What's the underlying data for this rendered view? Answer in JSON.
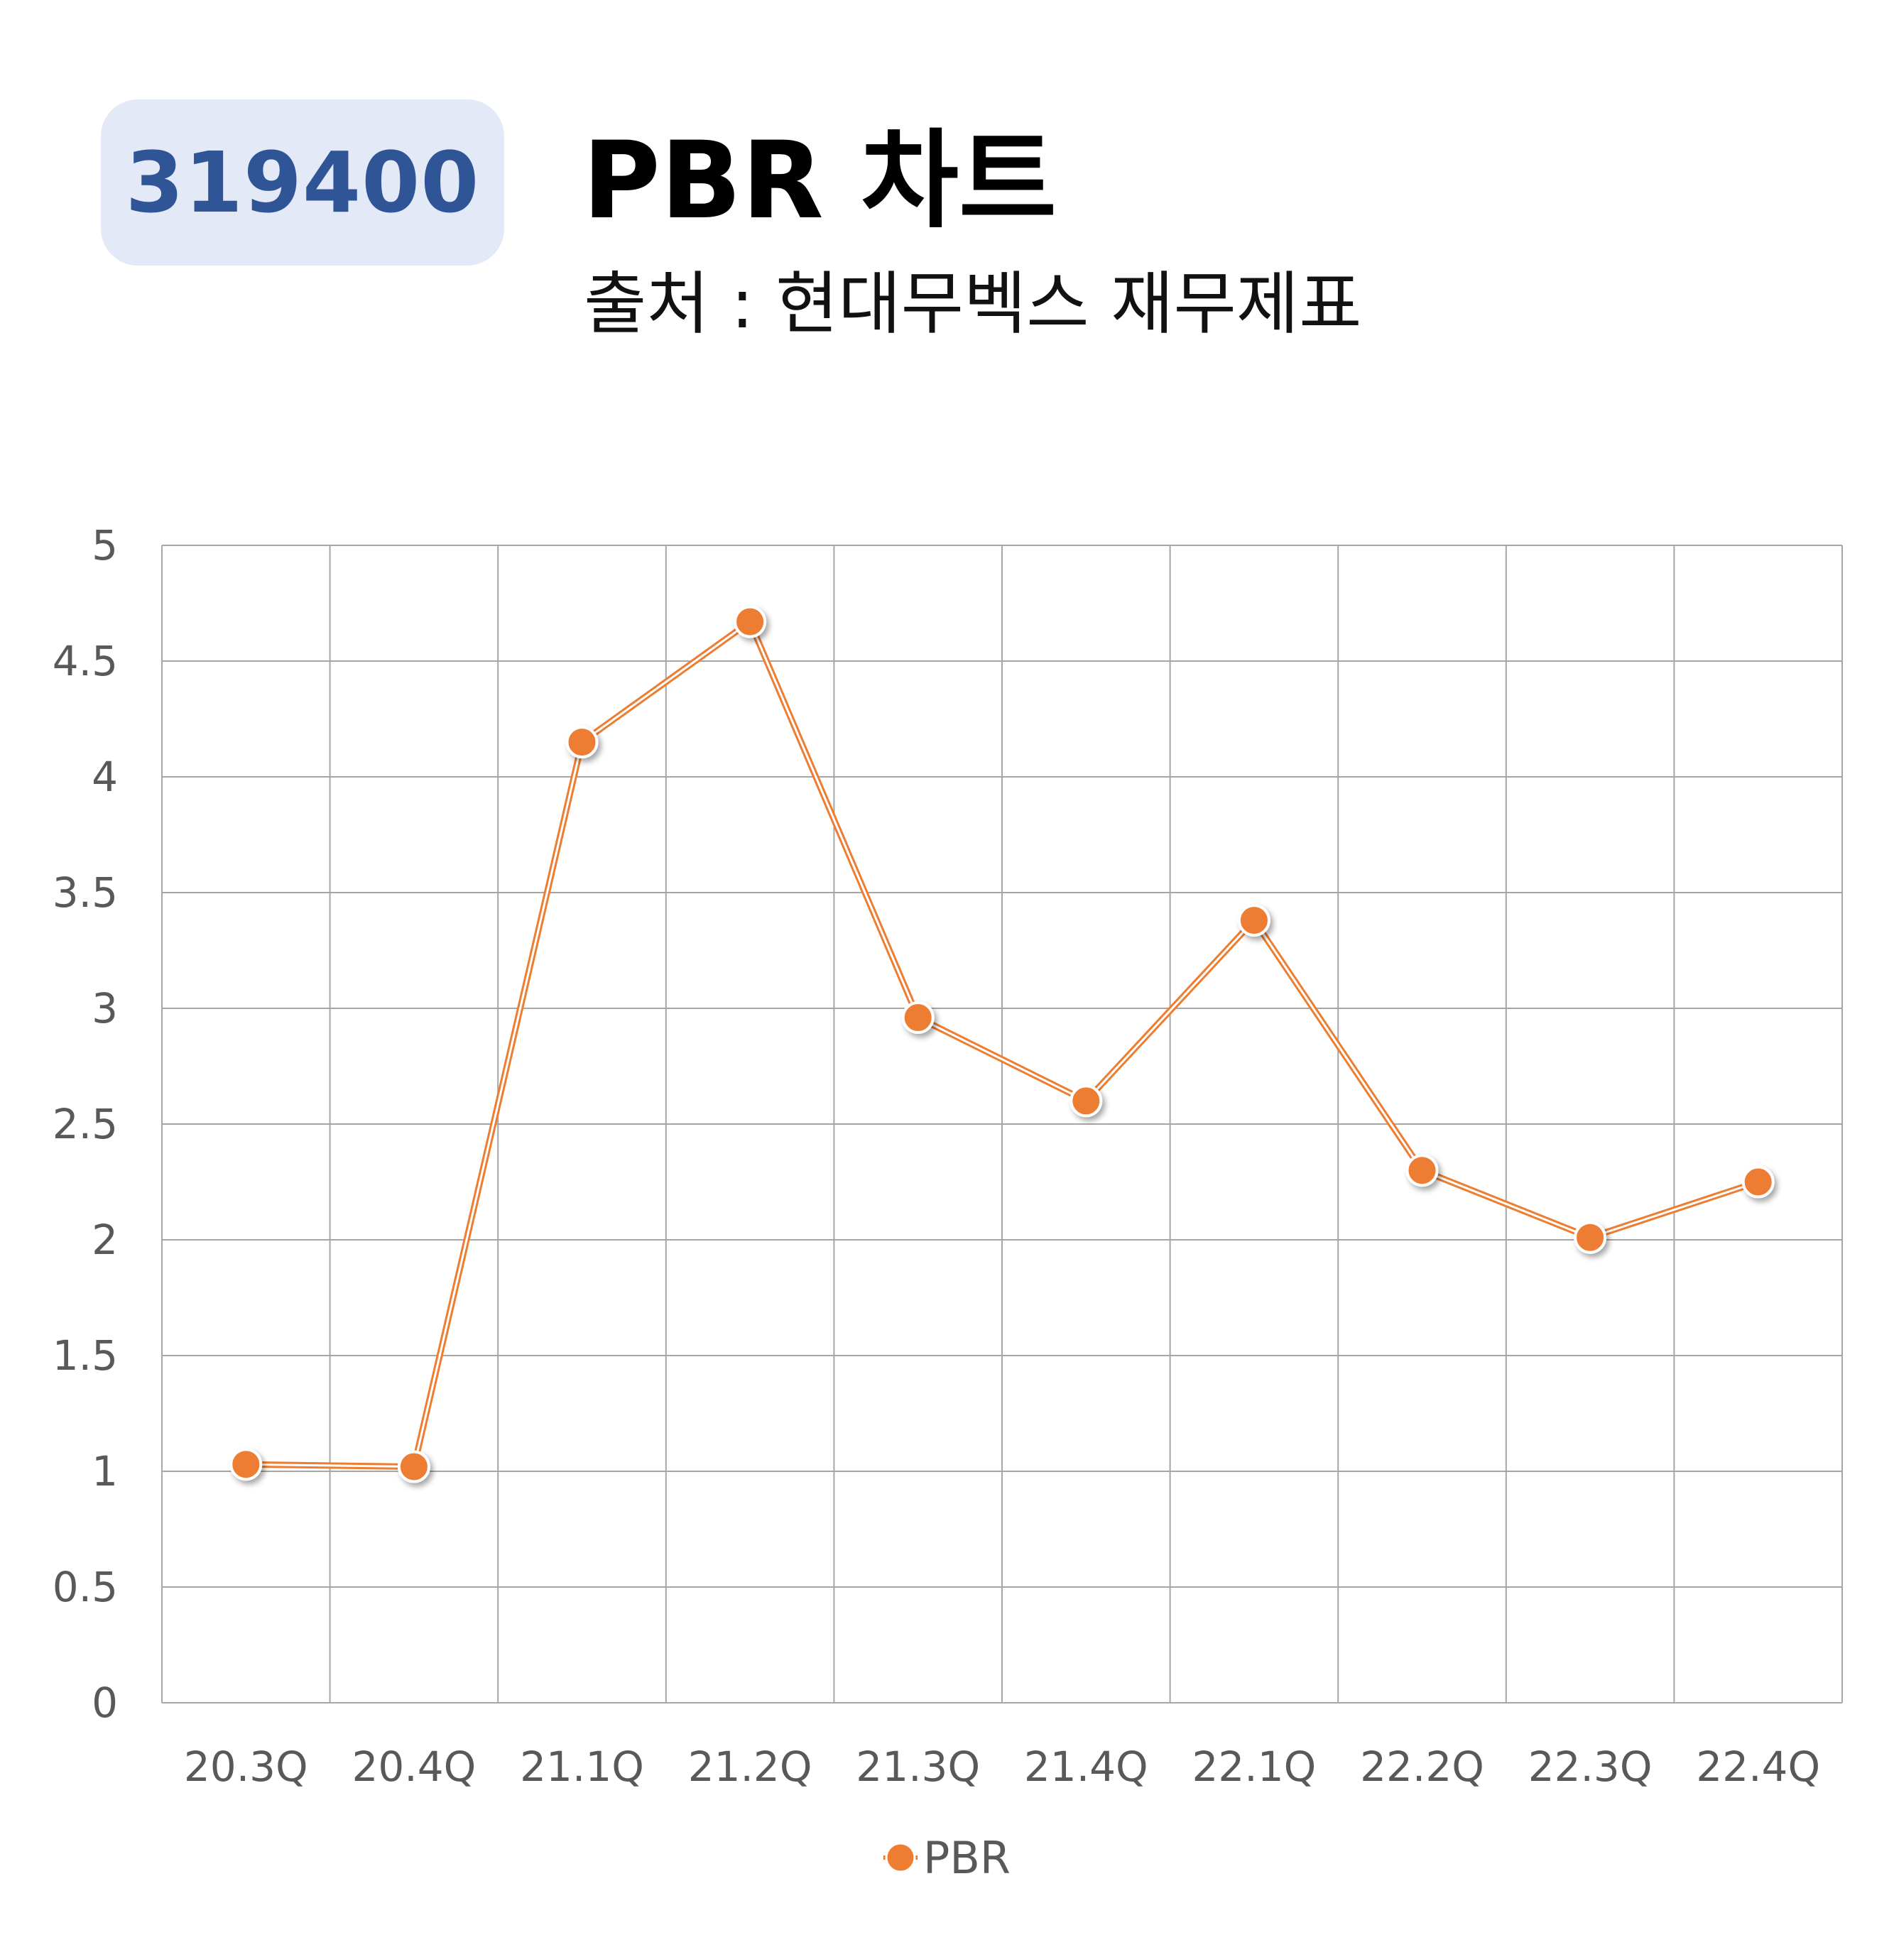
{
  "header": {
    "code": "319400",
    "title": "PBR 차트",
    "subtitle": "출처 : 현대무벡스 재무제표"
  },
  "colors": {
    "badge_bg": "#e3e9f6",
    "badge_text": "#2f5597",
    "series": "#ed7d31",
    "grid": "#a6a6a6",
    "tick_text": "#595959"
  },
  "chart_data": {
    "type": "line",
    "categories": [
      "20.3Q",
      "20.4Q",
      "21.1Q",
      "21.2Q",
      "21.3Q",
      "21.4Q",
      "22.1Q",
      "22.2Q",
      "22.3Q",
      "22.4Q"
    ],
    "series": [
      {
        "name": "PBR",
        "values": [
          1.03,
          1.02,
          4.15,
          4.67,
          2.96,
          2.6,
          3.38,
          2.3,
          2.01,
          2.25
        ]
      }
    ],
    "y_ticks": [
      "0",
      "0.5",
      "1",
      "1.5",
      "2",
      "2.5",
      "3",
      "3.5",
      "4",
      "4.5",
      "5"
    ],
    "ylim": [
      0,
      5
    ],
    "grid": true,
    "legend_position": "bottom",
    "marker": "circle"
  }
}
